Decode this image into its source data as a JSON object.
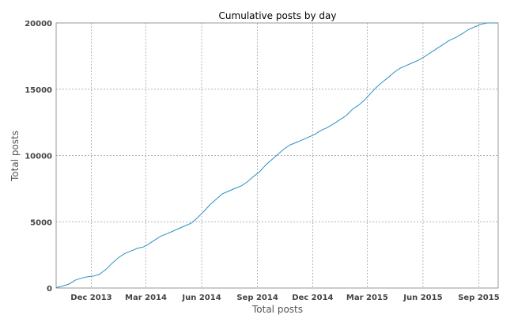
{
  "chart_data": {
    "type": "line",
    "title": "Cumulative posts by day",
    "xlabel": "Total posts",
    "ylabel": "Total posts",
    "x_axis_type": "date",
    "xlim": [
      "2013-10-04",
      "2015-10-03"
    ],
    "ylim": [
      0,
      20000
    ],
    "grid": true,
    "line_color": "#2c8fc4",
    "x_ticks": [
      {
        "date": "2013-12-01",
        "label": "Dec 2013"
      },
      {
        "date": "2014-03-01",
        "label": "Mar 2014"
      },
      {
        "date": "2014-06-01",
        "label": "Jun 2014"
      },
      {
        "date": "2014-09-01",
        "label": "Sep 2014"
      },
      {
        "date": "2014-12-01",
        "label": "Dec 2014"
      },
      {
        "date": "2015-03-01",
        "label": "Mar 2015"
      },
      {
        "date": "2015-06-01",
        "label": "Jun 2015"
      },
      {
        "date": "2015-09-01",
        "label": "Sep 2015"
      }
    ],
    "y_ticks": [
      {
        "value": 0,
        "label": "0"
      },
      {
        "value": 5000,
        "label": "5000"
      },
      {
        "value": 10000,
        "label": "10000"
      },
      {
        "value": 15000,
        "label": "15000"
      },
      {
        "value": 20000,
        "label": "20000"
      }
    ],
    "series": [
      {
        "x": [
          "2013-10-04",
          "2013-10-15",
          "2013-10-25",
          "2013-11-05",
          "2013-11-15",
          "2013-11-25",
          "2013-12-05",
          "2013-12-15",
          "2013-12-25",
          "2014-01-05",
          "2014-01-15",
          "2014-01-25",
          "2014-02-05",
          "2014-02-15",
          "2014-02-25",
          "2014-03-05",
          "2014-03-15",
          "2014-03-25",
          "2014-04-05",
          "2014-04-15",
          "2014-04-25",
          "2014-05-05",
          "2014-05-15",
          "2014-05-25",
          "2014-06-05",
          "2014-06-15",
          "2014-06-25",
          "2014-07-05",
          "2014-07-15",
          "2014-07-25",
          "2014-08-05",
          "2014-08-15",
          "2014-08-25",
          "2014-09-05",
          "2014-09-15",
          "2014-09-25",
          "2014-10-05",
          "2014-10-15",
          "2014-10-25",
          "2014-11-05",
          "2014-11-15",
          "2014-11-25",
          "2014-12-05",
          "2014-12-15",
          "2014-12-25",
          "2015-01-05",
          "2015-01-15",
          "2015-01-25",
          "2015-02-05",
          "2015-02-15",
          "2015-02-25",
          "2015-03-05",
          "2015-03-15",
          "2015-03-25",
          "2015-04-05",
          "2015-04-15",
          "2015-04-25",
          "2015-05-05",
          "2015-05-15",
          "2015-05-25",
          "2015-06-05",
          "2015-06-15",
          "2015-06-25",
          "2015-07-05",
          "2015-07-15",
          "2015-07-25",
          "2015-08-05",
          "2015-08-15",
          "2015-08-25",
          "2015-09-05",
          "2015-09-15",
          "2015-09-25",
          "2015-10-03"
        ],
        "y": [
          30,
          150,
          300,
          600,
          750,
          850,
          900,
          1050,
          1400,
          1900,
          2300,
          2600,
          2800,
          3000,
          3100,
          3300,
          3600,
          3900,
          4100,
          4300,
          4500,
          4700,
          4900,
          5300,
          5800,
          6300,
          6700,
          7100,
          7300,
          7500,
          7700,
          8000,
          8400,
          8800,
          9300,
          9700,
          10100,
          10500,
          10800,
          11000,
          11200,
          11400,
          11600,
          11900,
          12100,
          12400,
          12700,
          13000,
          13500,
          13800,
          14200,
          14600,
          15100,
          15500,
          15900,
          16300,
          16600,
          16800,
          17000,
          17200,
          17500,
          17800,
          18100,
          18400,
          18700,
          18900,
          19200,
          19500,
          19700,
          19900,
          20000,
          20100,
          20200
        ]
      }
    ]
  }
}
